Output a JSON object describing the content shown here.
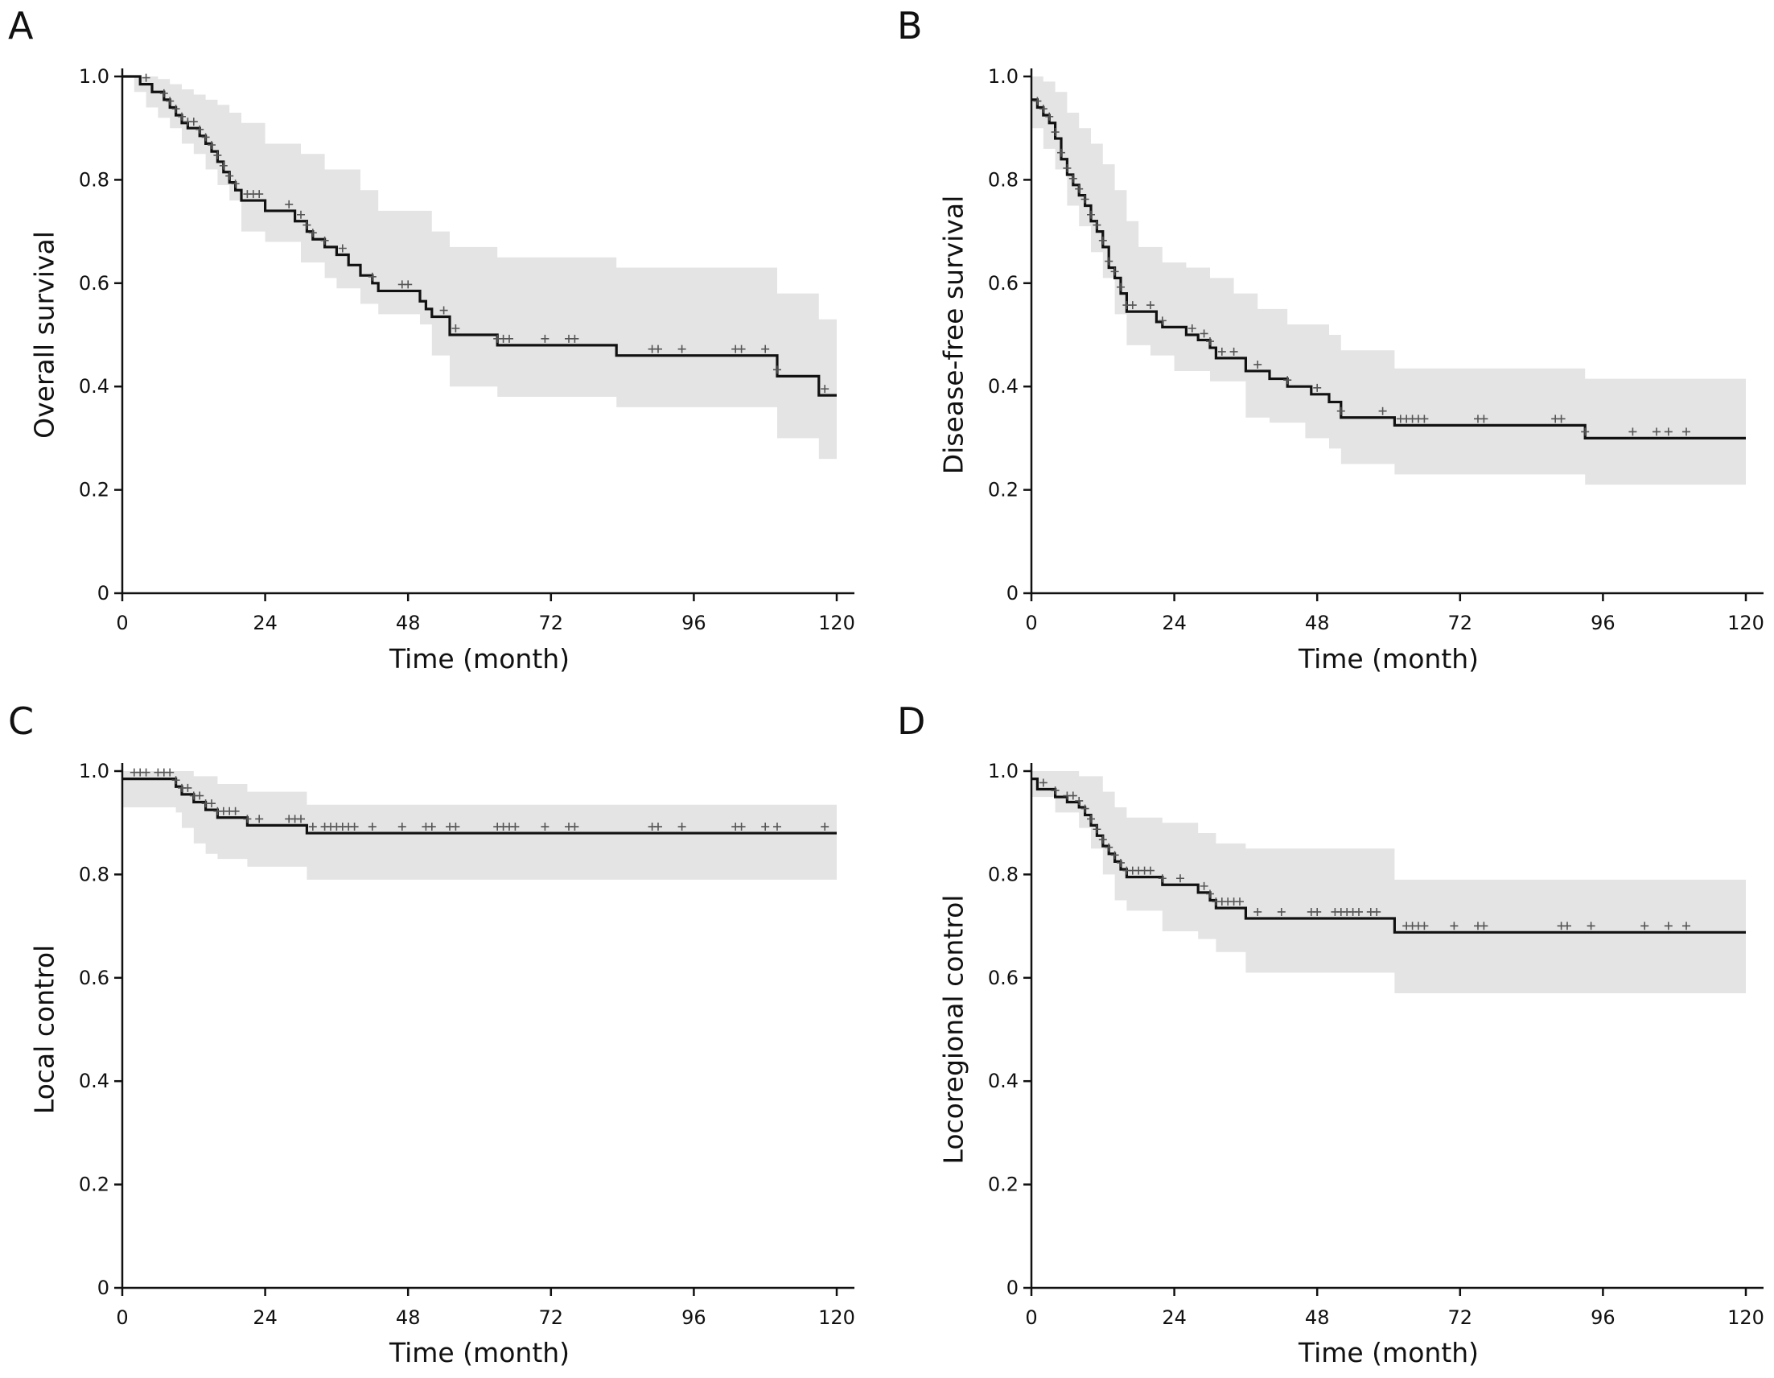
{
  "colors": {
    "curve": "#111111",
    "ci_band": "#e4e4e4",
    "censor": "#555555",
    "axis": "#111111"
  },
  "chart_data": [
    {
      "panel": "A",
      "type": "line",
      "subtype": "kaplan-meier",
      "xlabel": "Time (month)",
      "ylabel": "Overall survival",
      "xlim": [
        0,
        120
      ],
      "ylim": [
        0,
        1
      ],
      "xticks": [
        "0",
        "24",
        "48",
        "72",
        "96",
        "120"
      ],
      "yticks": [
        "0",
        "0.2",
        "0.4",
        "0.6",
        "0.8",
        "1.0"
      ],
      "grid": false,
      "curve": [
        [
          0,
          1.0
        ],
        [
          3,
          0.985
        ],
        [
          5,
          0.97
        ],
        [
          7,
          0.955
        ],
        [
          8,
          0.94
        ],
        [
          9,
          0.925
        ],
        [
          10,
          0.91
        ],
        [
          11,
          0.9
        ],
        [
          13,
          0.885
        ],
        [
          14,
          0.87
        ],
        [
          15,
          0.855
        ],
        [
          16,
          0.835
        ],
        [
          17,
          0.815
        ],
        [
          18,
          0.795
        ],
        [
          19,
          0.78
        ],
        [
          20,
          0.76
        ],
        [
          24,
          0.74
        ],
        [
          29,
          0.72
        ],
        [
          31,
          0.7
        ],
        [
          32,
          0.685
        ],
        [
          34,
          0.67
        ],
        [
          36,
          0.655
        ],
        [
          38,
          0.635
        ],
        [
          40,
          0.615
        ],
        [
          42,
          0.6
        ],
        [
          43,
          0.585
        ],
        [
          50,
          0.565
        ],
        [
          51,
          0.55
        ],
        [
          52,
          0.535
        ],
        [
          55,
          0.5
        ],
        [
          63,
          0.48
        ],
        [
          83,
          0.46
        ],
        [
          110,
          0.42
        ],
        [
          117,
          0.383
        ],
        [
          120,
          0.383
        ]
      ],
      "ci_upper": [
        [
          0,
          1.0
        ],
        [
          4,
          1.0
        ],
        [
          6,
          0.995
        ],
        [
          8,
          0.985
        ],
        [
          10,
          0.975
        ],
        [
          12,
          0.965
        ],
        [
          14,
          0.955
        ],
        [
          16,
          0.945
        ],
        [
          18,
          0.93
        ],
        [
          20,
          0.91
        ],
        [
          24,
          0.87
        ],
        [
          30,
          0.85
        ],
        [
          34,
          0.82
        ],
        [
          40,
          0.78
        ],
        [
          43,
          0.74
        ],
        [
          52,
          0.7
        ],
        [
          55,
          0.67
        ],
        [
          63,
          0.65
        ],
        [
          83,
          0.63
        ],
        [
          110,
          0.58
        ],
        [
          117,
          0.53
        ],
        [
          120,
          0.53
        ]
      ],
      "ci_lower": [
        [
          0,
          1.0
        ],
        [
          2,
          0.97
        ],
        [
          4,
          0.94
        ],
        [
          6,
          0.92
        ],
        [
          8,
          0.9
        ],
        [
          10,
          0.87
        ],
        [
          12,
          0.85
        ],
        [
          14,
          0.82
        ],
        [
          16,
          0.79
        ],
        [
          18,
          0.76
        ],
        [
          20,
          0.7
        ],
        [
          24,
          0.68
        ],
        [
          30,
          0.64
        ],
        [
          34,
          0.61
        ],
        [
          36,
          0.59
        ],
        [
          40,
          0.56
        ],
        [
          43,
          0.54
        ],
        [
          50,
          0.52
        ],
        [
          52,
          0.46
        ],
        [
          55,
          0.4
        ],
        [
          63,
          0.38
        ],
        [
          83,
          0.36
        ],
        [
          110,
          0.3
        ],
        [
          117,
          0.26
        ],
        [
          120,
          0.26
        ]
      ],
      "censored_times": [
        4,
        7,
        8,
        9,
        10,
        11,
        12,
        13,
        14,
        15,
        16,
        17,
        18,
        19,
        21,
        22,
        23,
        28,
        30,
        31,
        32,
        34,
        37,
        42,
        47,
        48,
        54,
        56,
        63,
        64,
        65,
        71,
        75,
        76,
        89,
        90,
        94,
        103,
        104,
        108,
        110,
        118
      ]
    },
    {
      "panel": "B",
      "type": "line",
      "subtype": "kaplan-meier",
      "xlabel": "Time (month)",
      "ylabel": "Disease-free survival",
      "xlim": [
        0,
        120
      ],
      "ylim": [
        0,
        1
      ],
      "xticks": [
        "0",
        "24",
        "48",
        "72",
        "96",
        "120"
      ],
      "yticks": [
        "0",
        "0.2",
        "0.4",
        "0.6",
        "0.8",
        "1.0"
      ],
      "grid": false,
      "curve": [
        [
          0,
          0.955
        ],
        [
          1,
          0.94
        ],
        [
          2,
          0.925
        ],
        [
          3,
          0.91
        ],
        [
          4,
          0.88
        ],
        [
          5,
          0.84
        ],
        [
          6,
          0.81
        ],
        [
          7,
          0.79
        ],
        [
          8,
          0.77
        ],
        [
          9,
          0.75
        ],
        [
          10,
          0.72
        ],
        [
          11,
          0.7
        ],
        [
          12,
          0.67
        ],
        [
          13,
          0.63
        ],
        [
          14,
          0.61
        ],
        [
          15,
          0.58
        ],
        [
          16,
          0.545
        ],
        [
          21,
          0.525
        ],
        [
          22,
          0.515
        ],
        [
          26,
          0.5
        ],
        [
          28,
          0.49
        ],
        [
          30,
          0.475
        ],
        [
          31,
          0.455
        ],
        [
          36,
          0.43
        ],
        [
          40,
          0.415
        ],
        [
          43,
          0.4
        ],
        [
          47,
          0.385
        ],
        [
          50,
          0.37
        ],
        [
          52,
          0.34
        ],
        [
          61,
          0.325
        ],
        [
          93,
          0.3
        ],
        [
          120,
          0.3
        ]
      ],
      "ci_upper": [
        [
          0,
          1.0
        ],
        [
          2,
          0.99
        ],
        [
          4,
          0.97
        ],
        [
          6,
          0.93
        ],
        [
          8,
          0.9
        ],
        [
          10,
          0.87
        ],
        [
          12,
          0.83
        ],
        [
          14,
          0.78
        ],
        [
          16,
          0.72
        ],
        [
          18,
          0.67
        ],
        [
          22,
          0.64
        ],
        [
          26,
          0.63
        ],
        [
          30,
          0.61
        ],
        [
          34,
          0.58
        ],
        [
          38,
          0.55
        ],
        [
          43,
          0.52
        ],
        [
          50,
          0.5
        ],
        [
          52,
          0.47
        ],
        [
          61,
          0.435
        ],
        [
          93,
          0.415
        ],
        [
          120,
          0.415
        ]
      ],
      "ci_lower": [
        [
          0,
          0.9
        ],
        [
          2,
          0.86
        ],
        [
          4,
          0.82
        ],
        [
          6,
          0.75
        ],
        [
          8,
          0.71
        ],
        [
          10,
          0.66
        ],
        [
          12,
          0.61
        ],
        [
          14,
          0.54
        ],
        [
          16,
          0.48
        ],
        [
          20,
          0.46
        ],
        [
          24,
          0.43
        ],
        [
          30,
          0.41
        ],
        [
          36,
          0.34
        ],
        [
          40,
          0.33
        ],
        [
          46,
          0.3
        ],
        [
          50,
          0.28
        ],
        [
          52,
          0.25
        ],
        [
          61,
          0.23
        ],
        [
          93,
          0.21
        ],
        [
          120,
          0.21
        ]
      ],
      "censored_times": [
        1,
        2,
        3,
        4,
        5,
        6,
        7,
        8,
        9,
        10,
        11,
        12,
        13,
        14,
        15,
        16,
        17,
        20,
        22,
        27,
        29,
        30,
        32,
        34,
        38,
        43,
        48,
        52,
        59,
        62,
        63,
        64,
        65,
        66,
        75,
        76,
        88,
        89,
        93,
        101,
        105,
        107,
        110
      ]
    },
    {
      "panel": "C",
      "type": "line",
      "subtype": "kaplan-meier",
      "xlabel": "Time (month)",
      "ylabel": "Local control",
      "xlim": [
        0,
        120
      ],
      "ylim": [
        0,
        1
      ],
      "xticks": [
        "0",
        "24",
        "48",
        "72",
        "96",
        "120"
      ],
      "yticks": [
        "0",
        "0.2",
        "0.4",
        "0.6",
        "0.8",
        "1.0"
      ],
      "grid": false,
      "curve": [
        [
          0,
          0.985
        ],
        [
          9,
          0.97
        ],
        [
          10,
          0.955
        ],
        [
          12,
          0.94
        ],
        [
          14,
          0.925
        ],
        [
          16,
          0.91
        ],
        [
          21,
          0.895
        ],
        [
          31,
          0.88
        ],
        [
          120,
          0.88
        ]
      ],
      "ci_upper": [
        [
          0,
          1.0
        ],
        [
          9,
          1.0
        ],
        [
          12,
          0.99
        ],
        [
          16,
          0.975
        ],
        [
          21,
          0.96
        ],
        [
          31,
          0.935
        ],
        [
          120,
          0.935
        ]
      ],
      "ci_lower": [
        [
          0,
          0.93
        ],
        [
          9,
          0.92
        ],
        [
          10,
          0.89
        ],
        [
          12,
          0.86
        ],
        [
          14,
          0.84
        ],
        [
          16,
          0.83
        ],
        [
          21,
          0.815
        ],
        [
          31,
          0.79
        ],
        [
          120,
          0.79
        ]
      ],
      "censored_times": [
        2,
        3,
        4,
        6,
        7,
        8,
        9,
        10,
        11,
        12,
        13,
        14,
        15,
        16,
        17,
        18,
        19,
        21,
        23,
        28,
        29,
        30,
        32,
        34,
        35,
        36,
        37,
        38,
        39,
        42,
        47,
        51,
        52,
        55,
        56,
        63,
        64,
        65,
        66,
        71,
        75,
        76,
        89,
        90,
        94,
        103,
        104,
        108,
        110,
        118
      ]
    },
    {
      "panel": "D",
      "type": "line",
      "subtype": "kaplan-meier",
      "xlabel": "Time (month)",
      "ylabel": "Locoregional control",
      "xlim": [
        0,
        120
      ],
      "ylim": [
        0,
        1
      ],
      "xticks": [
        "0",
        "24",
        "48",
        "72",
        "96",
        "120"
      ],
      "yticks": [
        "0",
        "0.2",
        "0.4",
        "0.6",
        "0.8",
        "1.0"
      ],
      "grid": false,
      "curve": [
        [
          0,
          0.985
        ],
        [
          1,
          0.965
        ],
        [
          4,
          0.95
        ],
        [
          6,
          0.94
        ],
        [
          8,
          0.93
        ],
        [
          9,
          0.915
        ],
        [
          10,
          0.895
        ],
        [
          11,
          0.875
        ],
        [
          12,
          0.855
        ],
        [
          13,
          0.84
        ],
        [
          14,
          0.825
        ],
        [
          15,
          0.81
        ],
        [
          16,
          0.795
        ],
        [
          22,
          0.78
        ],
        [
          28,
          0.765
        ],
        [
          30,
          0.75
        ],
        [
          31,
          0.735
        ],
        [
          36,
          0.715
        ],
        [
          61,
          0.688
        ],
        [
          120,
          0.688
        ]
      ],
      "ci_upper": [
        [
          0,
          1.0
        ],
        [
          4,
          1.0
        ],
        [
          8,
          0.99
        ],
        [
          12,
          0.96
        ],
        [
          14,
          0.93
        ],
        [
          16,
          0.91
        ],
        [
          22,
          0.9
        ],
        [
          28,
          0.88
        ],
        [
          31,
          0.86
        ],
        [
          36,
          0.85
        ],
        [
          61,
          0.79
        ],
        [
          120,
          0.79
        ]
      ],
      "ci_lower": [
        [
          0,
          0.95
        ],
        [
          4,
          0.92
        ],
        [
          8,
          0.89
        ],
        [
          10,
          0.85
        ],
        [
          12,
          0.8
        ],
        [
          14,
          0.75
        ],
        [
          16,
          0.73
        ],
        [
          22,
          0.69
        ],
        [
          28,
          0.675
        ],
        [
          31,
          0.65
        ],
        [
          36,
          0.61
        ],
        [
          61,
          0.57
        ],
        [
          120,
          0.57
        ]
      ],
      "censored_times": [
        2,
        4,
        6,
        7,
        8,
        9,
        10,
        11,
        12,
        13,
        14,
        15,
        16,
        17,
        18,
        19,
        20,
        22,
        25,
        29,
        30,
        31,
        32,
        33,
        34,
        35,
        38,
        42,
        47,
        48,
        51,
        52,
        53,
        54,
        55,
        57,
        58,
        63,
        64,
        65,
        66,
        71,
        75,
        76,
        89,
        90,
        94,
        103,
        107,
        110
      ]
    }
  ]
}
